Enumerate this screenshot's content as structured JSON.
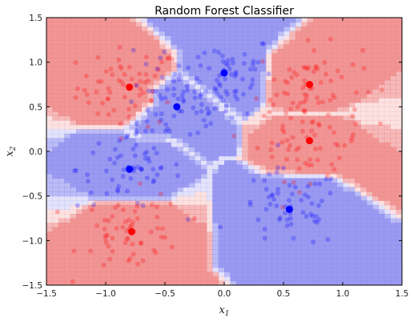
{
  "chart_data": {
    "type": "scatter",
    "title": "Random Forest Classifier",
    "xlabel": "x",
    "xlabel_sub": "1",
    "ylabel": "x",
    "ylabel_sub": "2",
    "xlim": [
      -1.5,
      1.5
    ],
    "ylim": [
      -1.5,
      1.5
    ],
    "xticks": [
      "−1.5",
      "−1.0",
      "−0.5",
      "0.0",
      "0.5",
      "1.0",
      "1.5"
    ],
    "yticks": [
      "−1.5",
      "−1.0",
      "−0.5",
      "0.0",
      "0.5",
      "1.0",
      "1.5"
    ],
    "grid": false,
    "colors": {
      "red": "#ff0000",
      "blue": "#0000ff",
      "red_region": "#ef8a8a",
      "blue_region": "#8f8ff0"
    },
    "centers": [
      {
        "class": "red",
        "x": -0.8,
        "y": 0.72
      },
      {
        "class": "blue",
        "x": -0.4,
        "y": 0.5
      },
      {
        "class": "blue",
        "x": 0.0,
        "y": 0.88
      },
      {
        "class": "red",
        "x": 0.72,
        "y": 0.75
      },
      {
        "class": "red",
        "x": 0.72,
        "y": 0.12
      },
      {
        "class": "blue",
        "x": -0.8,
        "y": -0.2
      },
      {
        "class": "blue",
        "x": 0.55,
        "y": -0.65
      },
      {
        "class": "red",
        "x": -0.78,
        "y": -0.9
      }
    ],
    "sample_points_per_center": 60
  }
}
